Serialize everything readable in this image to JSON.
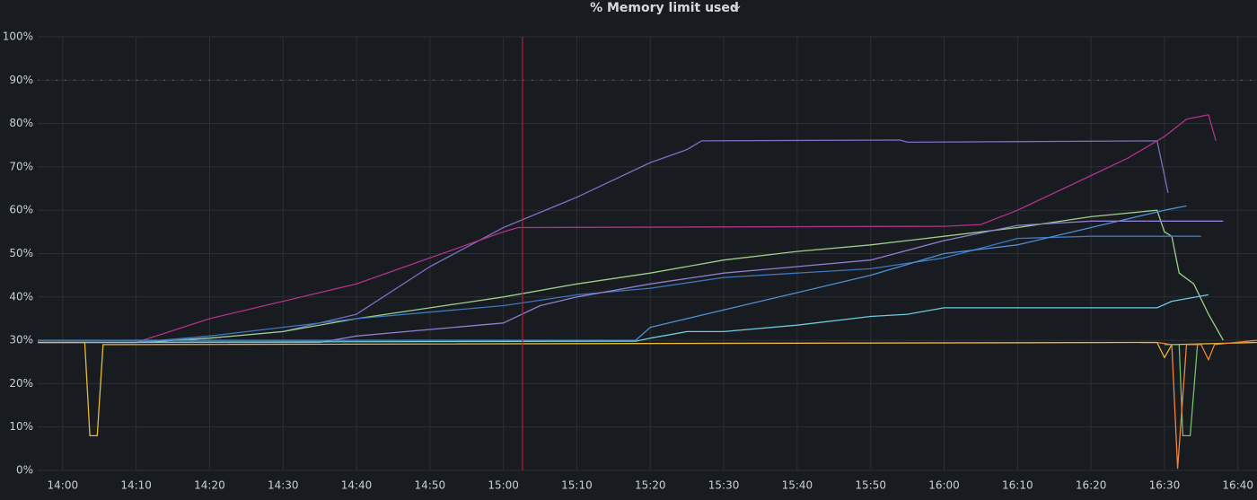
{
  "chart_data": {
    "type": "line",
    "title": "% Memory limit used",
    "xlim": [
      836.6,
      1002.6
    ],
    "xticks": [
      {
        "value": 840,
        "label": "14:00"
      },
      {
        "value": 850,
        "label": "14:10"
      },
      {
        "value": 860,
        "label": "14:20"
      },
      {
        "value": 870,
        "label": "14:30"
      },
      {
        "value": 880,
        "label": "14:40"
      },
      {
        "value": 890,
        "label": "14:50"
      },
      {
        "value": 900,
        "label": "15:00"
      },
      {
        "value": 910,
        "label": "15:10"
      },
      {
        "value": 920,
        "label": "15:20"
      },
      {
        "value": 930,
        "label": "15:30"
      },
      {
        "value": 940,
        "label": "15:40"
      },
      {
        "value": 950,
        "label": "15:50"
      },
      {
        "value": 960,
        "label": "16:00"
      },
      {
        "value": 970,
        "label": "16:10"
      },
      {
        "value": 980,
        "label": "16:20"
      },
      {
        "value": 990,
        "label": "16:30"
      },
      {
        "value": 1000,
        "label": "16:40"
      }
    ],
    "ylim": [
      0,
      100
    ],
    "yticks": [
      {
        "value": 0,
        "label": "0%"
      },
      {
        "value": 10,
        "label": "10%"
      },
      {
        "value": 20,
        "label": "20%"
      },
      {
        "value": 30,
        "label": "30%"
      },
      {
        "value": 40,
        "label": "40%"
      },
      {
        "value": 50,
        "label": "50%"
      },
      {
        "value": 60,
        "label": "60%"
      },
      {
        "value": 70,
        "label": "70%"
      },
      {
        "value": 80,
        "label": "80%"
      },
      {
        "value": 90,
        "label": "90%"
      },
      {
        "value": 100,
        "label": "100%"
      }
    ],
    "grid": true,
    "threshold": 90,
    "threshold_color": "#e02f44",
    "annotation_x": 902.6,
    "annotation_color": "#c4162a",
    "series": [
      {
        "color": "#7b6fc4",
        "x": [
          836.6,
          850,
          860,
          870,
          880,
          890,
          900,
          910,
          920,
          925,
          927,
          954,
          955,
          989,
          990.5
        ],
        "values": [
          29.5,
          29.5,
          30.5,
          32,
          36,
          47,
          56,
          63,
          71,
          74,
          76,
          76.2,
          75.7,
          76,
          64
        ]
      },
      {
        "color": "#b0338a",
        "x": [
          836.6,
          850,
          860,
          870,
          880,
          890,
          900,
          902,
          960,
          965,
          970,
          980,
          985,
          990,
          993,
          996,
          997
        ],
        "values": [
          29.5,
          29.5,
          35,
          39,
          43,
          49,
          55,
          56,
          56.3,
          56.7,
          60,
          68,
          72,
          77,
          81,
          82,
          76
        ]
      },
      {
        "color": "#9ccf8c",
        "x": [
          836.6,
          850,
          860,
          870,
          880,
          890,
          900,
          910,
          920,
          930,
          940,
          950,
          960,
          970,
          980,
          989,
          990,
          991,
          992,
          994,
          996,
          998
        ],
        "values": [
          29.5,
          29.5,
          30.5,
          32,
          35,
          37.5,
          40,
          43,
          45.5,
          48.5,
          50.5,
          52,
          54,
          56,
          58.5,
          60,
          55,
          54,
          45.5,
          43,
          36,
          30
        ]
      },
      {
        "color": "#3d78c0",
        "x": [
          836.6,
          850,
          860,
          870,
          880,
          890,
          900,
          910,
          920,
          930,
          940,
          950,
          960,
          970,
          980,
          995
        ],
        "values": [
          29.5,
          29.5,
          31,
          33,
          35,
          36.5,
          38,
          40.5,
          42,
          44.5,
          45.5,
          46.5,
          49,
          53.5,
          54,
          54
        ]
      },
      {
        "color": "#4e8fd6",
        "x": [
          836.6,
          918,
          920,
          930,
          940,
          950,
          960,
          970,
          980,
          990,
          993
        ],
        "values": [
          30,
          30,
          33,
          37,
          41,
          45,
          50,
          52,
          56,
          60,
          61
        ]
      },
      {
        "color": "#8f7fcf",
        "x": [
          836.6,
          875,
          880,
          890,
          900,
          905,
          910,
          920,
          930,
          940,
          950,
          960,
          970,
          980,
          998
        ],
        "values": [
          29.5,
          29.5,
          31,
          32.5,
          34,
          38,
          40,
          43,
          45.5,
          47,
          48.5,
          53,
          56.5,
          57.5,
          57.5
        ]
      },
      {
        "color": "#6ccbe0",
        "x": [
          836.6,
          918,
          920,
          925,
          930,
          940,
          950,
          955,
          960,
          989,
          991,
          996
        ],
        "values": [
          29.5,
          29.8,
          30.5,
          32,
          32,
          33.5,
          35.5,
          36,
          37.5,
          37.5,
          39,
          40.5
        ]
      },
      {
        "color": "#eab839",
        "x": [
          836.6,
          843,
          843.7,
          844.7,
          845.5,
          989,
          990,
          991,
          1002.6
        ],
        "values": [
          29.5,
          29.5,
          8,
          8,
          29,
          29.5,
          26,
          29,
          29.5
        ]
      },
      {
        "color": "#73bf69",
        "x": [
          990,
          992,
          992.5,
          993.5,
          994.5
        ],
        "values": [
          29,
          29,
          8,
          8,
          29
        ]
      },
      {
        "color": "#ef843c",
        "x": [
          989,
          991,
          991.8,
          993,
          995,
          996,
          996.8,
          1002.6
        ],
        "values": [
          29.5,
          29,
          0.5,
          29,
          29,
          25.5,
          29,
          30
        ]
      }
    ]
  }
}
